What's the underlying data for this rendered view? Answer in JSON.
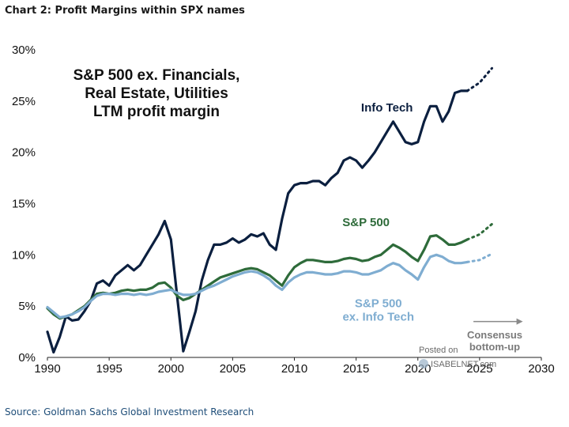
{
  "header": {
    "title": "Chart 2: Profit Margins within SPX names",
    "source": "Source: Goldman Sachs Global Investment Research"
  },
  "watermark": {
    "line1": "Posted on",
    "line2": "ISABELNET.com"
  },
  "chart_data": {
    "type": "line",
    "title_lines": [
      "S&P 500 ex. Financials,",
      "Real Estate, Utilities",
      "LTM profit margin"
    ],
    "xlabel": "",
    "ylabel": "",
    "xlim": [
      1990,
      2030
    ],
    "ylim": [
      0,
      30
    ],
    "x_ticks": [
      1990,
      1995,
      2000,
      2005,
      2010,
      2015,
      2020,
      2025,
      2030
    ],
    "x_tick_labels": [
      "1990",
      "1995",
      "2000",
      "2005",
      "2010",
      "2015",
      "2020",
      "2025",
      "2030"
    ],
    "y_ticks": [
      0,
      5,
      10,
      15,
      20,
      25,
      30
    ],
    "y_tick_labels": [
      "0%",
      "5%",
      "10%",
      "15%",
      "20%",
      "25%",
      "30%"
    ],
    "grid": false,
    "annotation": {
      "text_lines": [
        "Consensus",
        "bottom-up"
      ],
      "arrow_from_x": 2024.5,
      "arrow_to_x": 2028.5,
      "arrow_y": 3.5
    },
    "series": [
      {
        "name": "Info Tech",
        "label": "Info Tech",
        "color": "#0b1f3f",
        "label_at": [
          2017.5,
          24.0
        ],
        "x": [
          1990,
          1990.5,
          1991,
          1991.5,
          1992,
          1992.5,
          1993,
          1993.5,
          1994,
          1994.5,
          1995,
          1995.5,
          1996,
          1996.5,
          1997,
          1997.5,
          1998,
          1998.5,
          1999,
          1999.5,
          2000,
          2000.5,
          2001,
          2001.5,
          2002,
          2002.5,
          2003,
          2003.5,
          2004,
          2004.5,
          2005,
          2005.5,
          2006,
          2006.5,
          2007,
          2007.5,
          2008,
          2008.5,
          2009,
          2009.5,
          2010,
          2010.5,
          2011,
          2011.5,
          2012,
          2012.5,
          2013,
          2013.5,
          2014,
          2014.5,
          2015,
          2015.5,
          2016,
          2016.5,
          2017,
          2017.5,
          2018,
          2018.5,
          2019,
          2019.5,
          2020,
          2020.5,
          2021,
          2021.5,
          2022,
          2022.5,
          2023,
          2023.5,
          2024
        ],
        "values": [
          2.5,
          0.5,
          2.0,
          4.0,
          3.6,
          3.7,
          4.5,
          5.5,
          7.2,
          7.5,
          7.0,
          8.0,
          8.5,
          9.0,
          8.5,
          9.0,
          10.0,
          11.0,
          12.0,
          13.3,
          11.5,
          6.0,
          0.6,
          2.5,
          4.5,
          7.5,
          9.5,
          11.0,
          11.0,
          11.2,
          11.6,
          11.2,
          11.5,
          12.0,
          11.8,
          12.1,
          11.0,
          10.5,
          13.5,
          16.0,
          16.8,
          17.0,
          17.0,
          17.2,
          17.2,
          16.8,
          17.5,
          18.0,
          19.2,
          19.5,
          19.2,
          18.5,
          19.2,
          20.0,
          21.0,
          22.0,
          23.0,
          22.0,
          21.0,
          20.8,
          21.0,
          23.0,
          24.5,
          24.5,
          23.0,
          24.0,
          25.8,
          26.0,
          26.0
        ],
        "forecast_x": [
          2024,
          2025,
          2026
        ],
        "forecast_values": [
          26.0,
          26.8,
          28.2
        ]
      },
      {
        "name": "S&P 500",
        "label": "S&P 500",
        "color": "#2e6b3a",
        "label_at": [
          2015.8,
          12.8
        ],
        "x": [
          1990,
          1990.5,
          1991,
          1991.5,
          1992,
          1992.5,
          1993,
          1993.5,
          1994,
          1994.5,
          1995,
          1995.5,
          1996,
          1996.5,
          1997,
          1997.5,
          1998,
          1998.5,
          1999,
          1999.5,
          2000,
          2000.5,
          2001,
          2001.5,
          2002,
          2002.5,
          2003,
          2003.5,
          2004,
          2004.5,
          2005,
          2005.5,
          2006,
          2006.5,
          2007,
          2007.5,
          2008,
          2008.5,
          2009,
          2009.5,
          2010,
          2010.5,
          2011,
          2011.5,
          2012,
          2012.5,
          2013,
          2013.5,
          2014,
          2014.5,
          2015,
          2015.5,
          2016,
          2016.5,
          2017,
          2017.5,
          2018,
          2018.5,
          2019,
          2019.5,
          2020,
          2020.5,
          2021,
          2021.5,
          2022,
          2022.5,
          2023,
          2023.5,
          2024
        ],
        "values": [
          4.8,
          4.2,
          3.8,
          4.0,
          4.2,
          4.6,
          5.0,
          5.6,
          6.2,
          6.3,
          6.2,
          6.3,
          6.5,
          6.6,
          6.5,
          6.6,
          6.6,
          6.8,
          7.2,
          7.3,
          6.8,
          6.0,
          5.6,
          5.8,
          6.2,
          6.6,
          7.0,
          7.4,
          7.8,
          8.0,
          8.2,
          8.4,
          8.6,
          8.7,
          8.6,
          8.3,
          8.0,
          7.5,
          7.0,
          8.0,
          8.8,
          9.2,
          9.5,
          9.5,
          9.4,
          9.3,
          9.3,
          9.4,
          9.6,
          9.7,
          9.6,
          9.4,
          9.5,
          9.8,
          10.0,
          10.5,
          11.0,
          10.7,
          10.3,
          9.8,
          9.4,
          10.5,
          11.8,
          11.9,
          11.5,
          11.0,
          11.0,
          11.2,
          11.5
        ],
        "forecast_x": [
          2024,
          2025,
          2026
        ],
        "forecast_values": [
          11.5,
          12.0,
          13.0
        ]
      },
      {
        "name": "S&P 500 ex. Info Tech",
        "label": "S&P 500",
        "label2": "ex. Info Tech",
        "color": "#7fadd1",
        "label_at": [
          2016.8,
          4.9
        ],
        "x": [
          1990,
          1990.5,
          1991,
          1991.5,
          1992,
          1992.5,
          1993,
          1993.5,
          1994,
          1994.5,
          1995,
          1995.5,
          1996,
          1996.5,
          1997,
          1997.5,
          1998,
          1998.5,
          1999,
          1999.5,
          2000,
          2000.5,
          2001,
          2001.5,
          2002,
          2002.5,
          2003,
          2003.5,
          2004,
          2004.5,
          2005,
          2005.5,
          2006,
          2006.5,
          2007,
          2007.5,
          2008,
          2008.5,
          2009,
          2009.5,
          2010,
          2010.5,
          2011,
          2011.5,
          2012,
          2012.5,
          2013,
          2013.5,
          2014,
          2014.5,
          2015,
          2015.5,
          2016,
          2016.5,
          2017,
          2017.5,
          2018,
          2018.5,
          2019,
          2019.5,
          2020,
          2020.5,
          2021,
          2021.5,
          2022,
          2022.5,
          2023,
          2023.5,
          2024
        ],
        "values": [
          4.9,
          4.4,
          3.9,
          4.0,
          4.2,
          4.5,
          4.9,
          5.5,
          6.0,
          6.2,
          6.2,
          6.1,
          6.2,
          6.2,
          6.1,
          6.2,
          6.1,
          6.2,
          6.4,
          6.5,
          6.6,
          6.3,
          6.1,
          6.1,
          6.2,
          6.5,
          6.8,
          7.0,
          7.3,
          7.6,
          7.9,
          8.1,
          8.3,
          8.4,
          8.3,
          8.0,
          7.6,
          7.0,
          6.6,
          7.3,
          7.8,
          8.1,
          8.3,
          8.3,
          8.2,
          8.1,
          8.1,
          8.2,
          8.4,
          8.4,
          8.3,
          8.1,
          8.1,
          8.3,
          8.5,
          8.9,
          9.2,
          9.0,
          8.5,
          8.1,
          7.6,
          8.8,
          9.8,
          10.0,
          9.8,
          9.4,
          9.2,
          9.2,
          9.3
        ],
        "forecast_x": [
          2024,
          2025,
          2026
        ],
        "forecast_values": [
          9.3,
          9.5,
          10.1
        ]
      }
    ]
  }
}
